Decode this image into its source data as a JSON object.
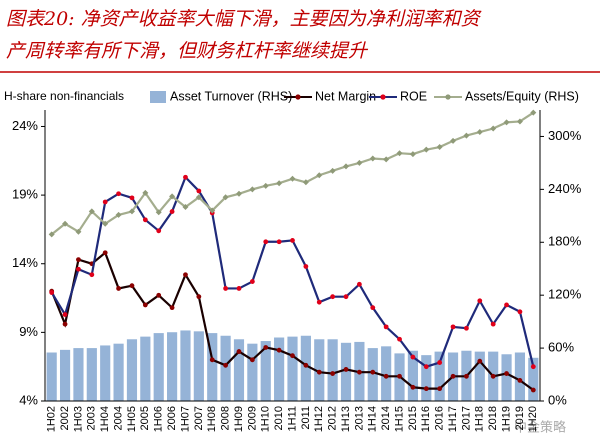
{
  "chart_data": {
    "type": "combo",
    "title_lines": [
      "图表20: 净资产收益率大幅下滑，主要因为净利润率和资",
      "产周转率有所下滑，但财务杠杆率继续提升"
    ],
    "y_label": "H-share non-financials",
    "watermark": "中金策略",
    "categories": [
      "1H02",
      "2002",
      "1H03",
      "2003",
      "1H04",
      "2004",
      "1H05",
      "2005",
      "1H06",
      "2006",
      "1H07",
      "2007",
      "1H08",
      "2008",
      "1H09",
      "2009",
      "1H10",
      "2010",
      "1H11",
      "2011",
      "1H12",
      "2012",
      "1H13",
      "2013",
      "1H14",
      "2014",
      "1H15",
      "2015",
      "1H16",
      "2016",
      "1H17",
      "2017",
      "1H18",
      "2018",
      "1H19",
      "2019",
      "1H20"
    ],
    "ylim": [
      4,
      25.2
    ],
    "yticks": [
      {
        "value": 4,
        "label": "4%"
      },
      {
        "value": 9,
        "label": "9%"
      },
      {
        "value": 14,
        "label": "14%"
      },
      {
        "value": 19,
        "label": "19%"
      },
      {
        "value": 24,
        "label": "24%"
      }
    ],
    "y2lim": [
      0,
      330
    ],
    "y2ticks": [
      {
        "value": 0,
        "label": "0%"
      },
      {
        "value": 60,
        "label": "60%"
      },
      {
        "value": 120,
        "label": "120%"
      },
      {
        "value": 180,
        "label": "180%"
      },
      {
        "value": 240,
        "label": "240%"
      },
      {
        "value": 300,
        "label": "300%"
      }
    ],
    "series": [
      {
        "name": "Asset Turnover (RHS)",
        "type": "bar",
        "axis": "y2",
        "color": "#95b3d7",
        "values": [
          55,
          58,
          60,
          60,
          63,
          65,
          70,
          73,
          77,
          78,
          80,
          79,
          77,
          74,
          70,
          65,
          68,
          72,
          73,
          74,
          70,
          70,
          66,
          67,
          60,
          62,
          54,
          57,
          52,
          56,
          55,
          57,
          56,
          56,
          53,
          55,
          49
        ]
      },
      {
        "name": "Net Margin",
        "type": "line",
        "color": "#1a0000",
        "marker_color": "#8b0000",
        "values": [
          12.0,
          9.6,
          14.3,
          14.0,
          14.8,
          12.2,
          12.4,
          11.0,
          11.7,
          10.8,
          13.2,
          11.6,
          7.0,
          6.6,
          7.6,
          7.0,
          7.9,
          7.7,
          7.3,
          6.6,
          6.1,
          6.0,
          6.3,
          6.1,
          6.1,
          5.8,
          5.8,
          5.0,
          4.9,
          4.9,
          5.8,
          5.8,
          6.9,
          5.8,
          6.0,
          5.5,
          4.8
        ]
      },
      {
        "name": "ROE",
        "type": "line",
        "color": "#1f2a7a",
        "marker_color": "#e0001a",
        "values": [
          11.9,
          10.3,
          13.6,
          13.2,
          18.5,
          19.1,
          18.8,
          17.2,
          16.4,
          17.8,
          20.3,
          19.3,
          17.7,
          12.2,
          12.2,
          12.7,
          15.6,
          15.6,
          15.7,
          13.8,
          11.2,
          11.6,
          11.6,
          12.5,
          10.8,
          9.4,
          8.5,
          7.2,
          6.5,
          6.8,
          9.4,
          9.3,
          11.3,
          9.6,
          11.0,
          10.5,
          6.5
        ]
      },
      {
        "name": "Assets/Equity (RHS)",
        "type": "line",
        "axis": "y2",
        "color": "#a4ad8e",
        "marker_color": "#8f9a78",
        "values": [
          189,
          201,
          192,
          215,
          201,
          211,
          215,
          236,
          214,
          232,
          220,
          231,
          216,
          231,
          235,
          240,
          244,
          247,
          252,
          248,
          256,
          261,
          266,
          270,
          275,
          274,
          281,
          280,
          285,
          288,
          295,
          301,
          305,
          309,
          316,
          317,
          327
        ]
      }
    ]
  }
}
